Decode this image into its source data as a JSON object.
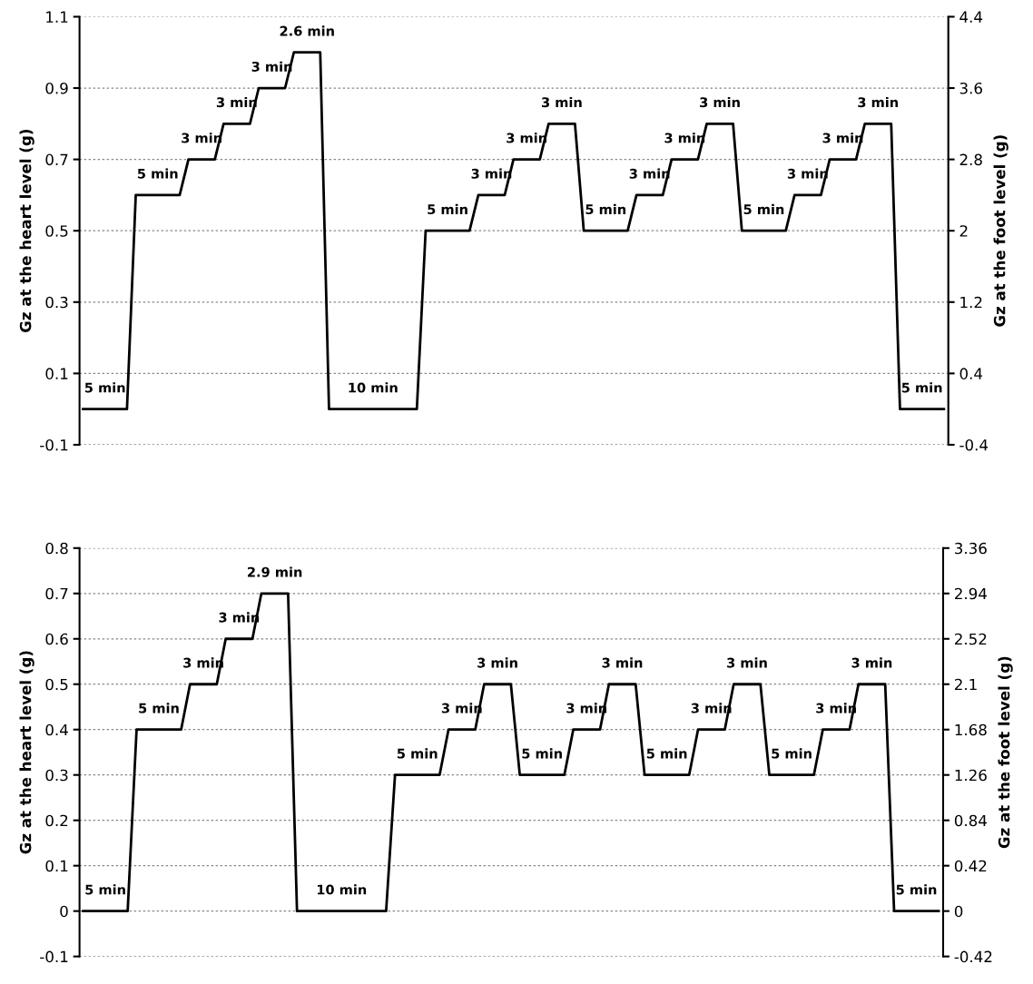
{
  "chart_data": [
    {
      "type": "line",
      "ylabel": "Gz at the heart level (g)",
      "y2label": "Gz at the foot level (g)",
      "categories": [
        null,
        null,
        null,
        null,
        null,
        null,
        null,
        null,
        null,
        null,
        null,
        null,
        null,
        null,
        null,
        null,
        null,
        null,
        null,
        null,
        null,
        null,
        null,
        null,
        null,
        null,
        null,
        null,
        null,
        null,
        null,
        null,
        null,
        null,
        null,
        null,
        null,
        null,
        null,
        null,
        null,
        null,
        null,
        null,
        null,
        null,
        null,
        null,
        null,
        null,
        null,
        null,
        null,
        null,
        null,
        null,
        null,
        null,
        null,
        null,
        null,
        null,
        null,
        null,
        null,
        null,
        null,
        null,
        null,
        null,
        null,
        null,
        null,
        null,
        null,
        null,
        null,
        null,
        null,
        null,
        null,
        null,
        null,
        null,
        null,
        null,
        null,
        null,
        null,
        null,
        null,
        null,
        null,
        null,
        null,
        null,
        null,
        null,
        null
      ],
      "series": [
        {
          "color": "#000000",
          "values": [
            0,
            0,
            0,
            0,
            0,
            0,
            0.6,
            0.6,
            0.6,
            0.6,
            0.6,
            0.6,
            0.7,
            0.7,
            0.7,
            0.7,
            0.8,
            0.8,
            0.8,
            0.8,
            0.9,
            0.9,
            0.9,
            0.9,
            1.0,
            1.0,
            1.0,
            1.0,
            0,
            0,
            0,
            0,
            0,
            0,
            0,
            0,
            0,
            0,
            0,
            0.5,
            0.5,
            0.5,
            0.5,
            0.5,
            0.5,
            0.6,
            0.6,
            0.6,
            0.6,
            0.7,
            0.7,
            0.7,
            0.7,
            0.8,
            0.8,
            0.8,
            0.8,
            0.5,
            0.5,
            0.5,
            0.5,
            0.5,
            0.5,
            0.6,
            0.6,
            0.6,
            0.6,
            0.7,
            0.7,
            0.7,
            0.7,
            0.8,
            0.8,
            0.8,
            0.8,
            0.5,
            0.5,
            0.5,
            0.5,
            0.5,
            0.5,
            0.6,
            0.6,
            0.6,
            0.6,
            0.7,
            0.7,
            0.7,
            0.7,
            0.8,
            0.8,
            0.8,
            0.8,
            0,
            0,
            0,
            0,
            0,
            0
          ]
        }
      ],
      "annotations": [
        {
          "text": "5 min",
          "y": 0
        },
        {
          "text": "5 min",
          "y": 0.6
        },
        {
          "text": "3 min",
          "y": 0.7
        },
        {
          "text": "3 min",
          "y": 0.8
        },
        {
          "text": "3 min",
          "y": 0.9
        },
        {
          "text": "2.6 min",
          "y": 1.0
        },
        {
          "text": "10 min",
          "y": 0
        },
        {
          "text": "5 min",
          "y": 0.5
        },
        {
          "text": "3 min",
          "y": 0.6
        },
        {
          "text": "3 min",
          "y": 0.7
        },
        {
          "text": "3 min",
          "y": 0.8
        },
        {
          "text": "5 min",
          "y": 0.5
        },
        {
          "text": "3 min",
          "y": 0.6
        },
        {
          "text": "3 min",
          "y": 0.7
        },
        {
          "text": "3 min",
          "y": 0.8
        },
        {
          "text": "5 min",
          "y": 0.5
        },
        {
          "text": "3 min",
          "y": 0.6
        },
        {
          "text": "3 min",
          "y": 0.7
        },
        {
          "text": "3 min",
          "y": 0.8
        },
        {
          "text": "5 min",
          "y": 0
        }
      ],
      "ylim": [
        -0.1,
        1.1
      ],
      "yticks": [
        -0.1,
        0.1,
        0.3,
        0.5,
        0.7,
        0.9,
        1.1
      ],
      "y2lim": [
        -0.4,
        4.4
      ],
      "y2ticks": [
        -0.4,
        0.4,
        1.2,
        2,
        2.8,
        3.6,
        4.4
      ],
      "grid": "y",
      "tick_labels": "y"
    },
    {
      "type": "line",
      "ylabel": "Gz at the heart level (g)",
      "y2label": "Gz at the foot level (g)",
      "categories": [
        null,
        null,
        null,
        null,
        null,
        null,
        null,
        null,
        null,
        null,
        null,
        null,
        null,
        null,
        null,
        null,
        null,
        null,
        null,
        null,
        null,
        null,
        null,
        null,
        null,
        null,
        null,
        null,
        null,
        null,
        null,
        null,
        null,
        null,
        null,
        null,
        null,
        null,
        null,
        null,
        null,
        null,
        null,
        null,
        null,
        null,
        null,
        null,
        null,
        null,
        null,
        null,
        null,
        null,
        null,
        null,
        null,
        null,
        null,
        null,
        null,
        null,
        null,
        null,
        null,
        null,
        null,
        null,
        null,
        null,
        null,
        null,
        null,
        null,
        null,
        null,
        null,
        null,
        null,
        null,
        null,
        null,
        null,
        null,
        null,
        null,
        null,
        null,
        null,
        null,
        null,
        null,
        null,
        null,
        null,
        null,
        null
      ],
      "series": [
        {
          "color": "#000000",
          "values": [
            0,
            0,
            0,
            0,
            0,
            0,
            0.4,
            0.4,
            0.4,
            0.4,
            0.4,
            0.4,
            0.5,
            0.5,
            0.5,
            0.5,
            0.6,
            0.6,
            0.6,
            0.6,
            0.7,
            0.7,
            0.7,
            0.7,
            0,
            0,
            0,
            0,
            0,
            0,
            0,
            0,
            0,
            0,
            0,
            0.3,
            0.3,
            0.3,
            0.3,
            0.3,
            0.3,
            0.4,
            0.4,
            0.4,
            0.4,
            0.5,
            0.5,
            0.5,
            0.5,
            0.3,
            0.3,
            0.3,
            0.3,
            0.3,
            0.3,
            0.4,
            0.4,
            0.4,
            0.4,
            0.5,
            0.5,
            0.5,
            0.5,
            0.3,
            0.3,
            0.3,
            0.3,
            0.3,
            0.3,
            0.4,
            0.4,
            0.4,
            0.4,
            0.5,
            0.5,
            0.5,
            0.5,
            0.3,
            0.3,
            0.3,
            0.3,
            0.3,
            0.3,
            0.4,
            0.4,
            0.4,
            0.4,
            0.5,
            0.5,
            0.5,
            0.5,
            0,
            0,
            0,
            0,
            0,
            0
          ]
        }
      ],
      "annotations": [
        {
          "text": "5 min",
          "y": 0
        },
        {
          "text": "5 min",
          "y": 0.4
        },
        {
          "text": "3 min",
          "y": 0.5
        },
        {
          "text": "3 min",
          "y": 0.6
        },
        {
          "text": "2.9 min",
          "y": 0.7
        },
        {
          "text": "10 min",
          "y": 0
        },
        {
          "text": "5 min",
          "y": 0.3
        },
        {
          "text": "3 min",
          "y": 0.4
        },
        {
          "text": "3 min",
          "y": 0.5
        },
        {
          "text": "5 min",
          "y": 0.3
        },
        {
          "text": "3 min",
          "y": 0.4
        },
        {
          "text": "3 min",
          "y": 0.5
        },
        {
          "text": "5 min",
          "y": 0.3
        },
        {
          "text": "3 min",
          "y": 0.4
        },
        {
          "text": "3 min",
          "y": 0.5
        },
        {
          "text": "5 min",
          "y": 0.3
        },
        {
          "text": "3 min",
          "y": 0.4
        },
        {
          "text": "3 min",
          "y": 0.5
        },
        {
          "text": "5 min",
          "y": 0
        }
      ],
      "ylim": [
        -0.1,
        0.8
      ],
      "yticks": [
        -0.1,
        0,
        0.1,
        0.2,
        0.3,
        0.4,
        0.5,
        0.6,
        0.7,
        0.8
      ],
      "y2lim": [
        -0.42,
        3.36
      ],
      "y2ticks": [
        -0.42,
        0,
        0.42,
        0.84,
        1.26,
        1.68,
        2.1,
        2.52,
        2.94,
        3.36
      ],
      "grid": "y",
      "tick_labels": "y"
    }
  ]
}
